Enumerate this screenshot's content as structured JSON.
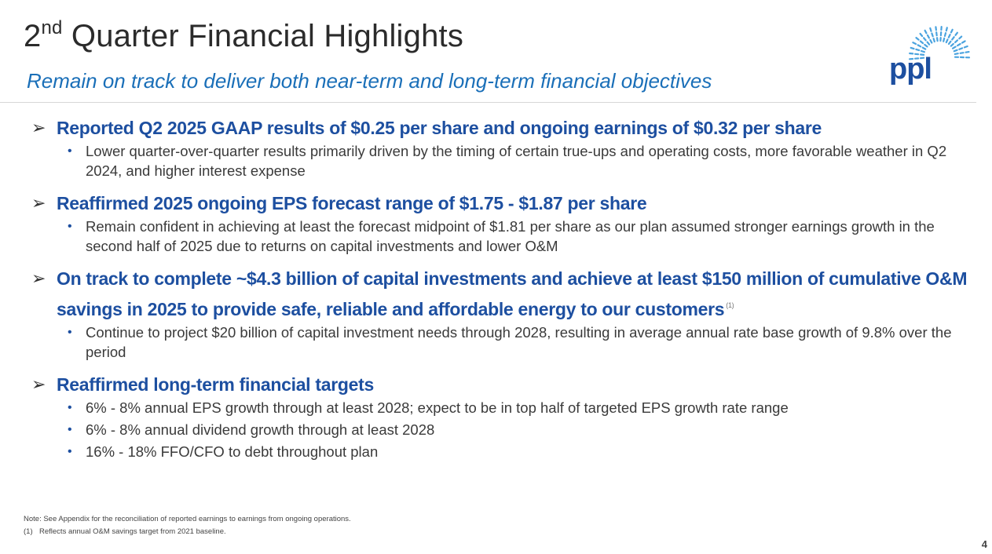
{
  "header": {
    "title_number": "2",
    "title_suffix": "nd",
    "title_rest": " Quarter Financial Highlights",
    "subtitle": "Remain on track to deliver both near-term and long-term financial objectives"
  },
  "logo": {
    "text": "ppl",
    "icon": "sunburst-logo-icon",
    "color": "#1d4fa0",
    "ray_color": "#4aa3df"
  },
  "sections": [
    {
      "heading": "Reported Q2 2025 GAAP results of $0.25 per share and ongoing earnings of $0.32 per share",
      "bullets": [
        "Lower quarter-over-quarter results primarily driven by the timing of certain true-ups and operating costs, more favorable weather in Q2 2024, and higher interest expense"
      ]
    },
    {
      "heading": "Reaffirmed 2025 ongoing EPS forecast range of $1.75 - $1.87 per share",
      "bullets": [
        "Remain confident in achieving at least the forecast midpoint of $1.81 per share as our plan assumed stronger earnings growth in the second half of 2025 due to returns on capital investments and lower O&M"
      ]
    },
    {
      "heading": "On track to complete ~$4.3 billion of capital investments and achieve at least $150 million of cumulative O&M savings in 2025 to provide safe, reliable and affordable energy to our customers",
      "footnote_ref": "(1)",
      "bullets": [
        "Continue to project $20 billion of capital investment needs through 2028, resulting in average annual rate base growth of 9.8% over the period"
      ]
    },
    {
      "heading": "Reaffirmed long-term financial targets",
      "bullets": [
        "6% - 8% annual EPS growth through at least 2028; expect to be in top half of targeted EPS growth rate range",
        "6% - 8% annual dividend growth through at least 2028",
        "16% - 18% FFO/CFO to debt throughout plan"
      ]
    }
  ],
  "notes": {
    "note": "Note: See Appendix for the reconciliation of reported earnings to earnings from ongoing operations.",
    "footnote_num": "(1)",
    "footnote_text": "Reflects annual O&M savings target from 2021 baseline."
  },
  "page_number": "4",
  "colors": {
    "heading": "#1d4fa0",
    "subtitle": "#1a6fb8",
    "body": "#3a3a3a"
  }
}
